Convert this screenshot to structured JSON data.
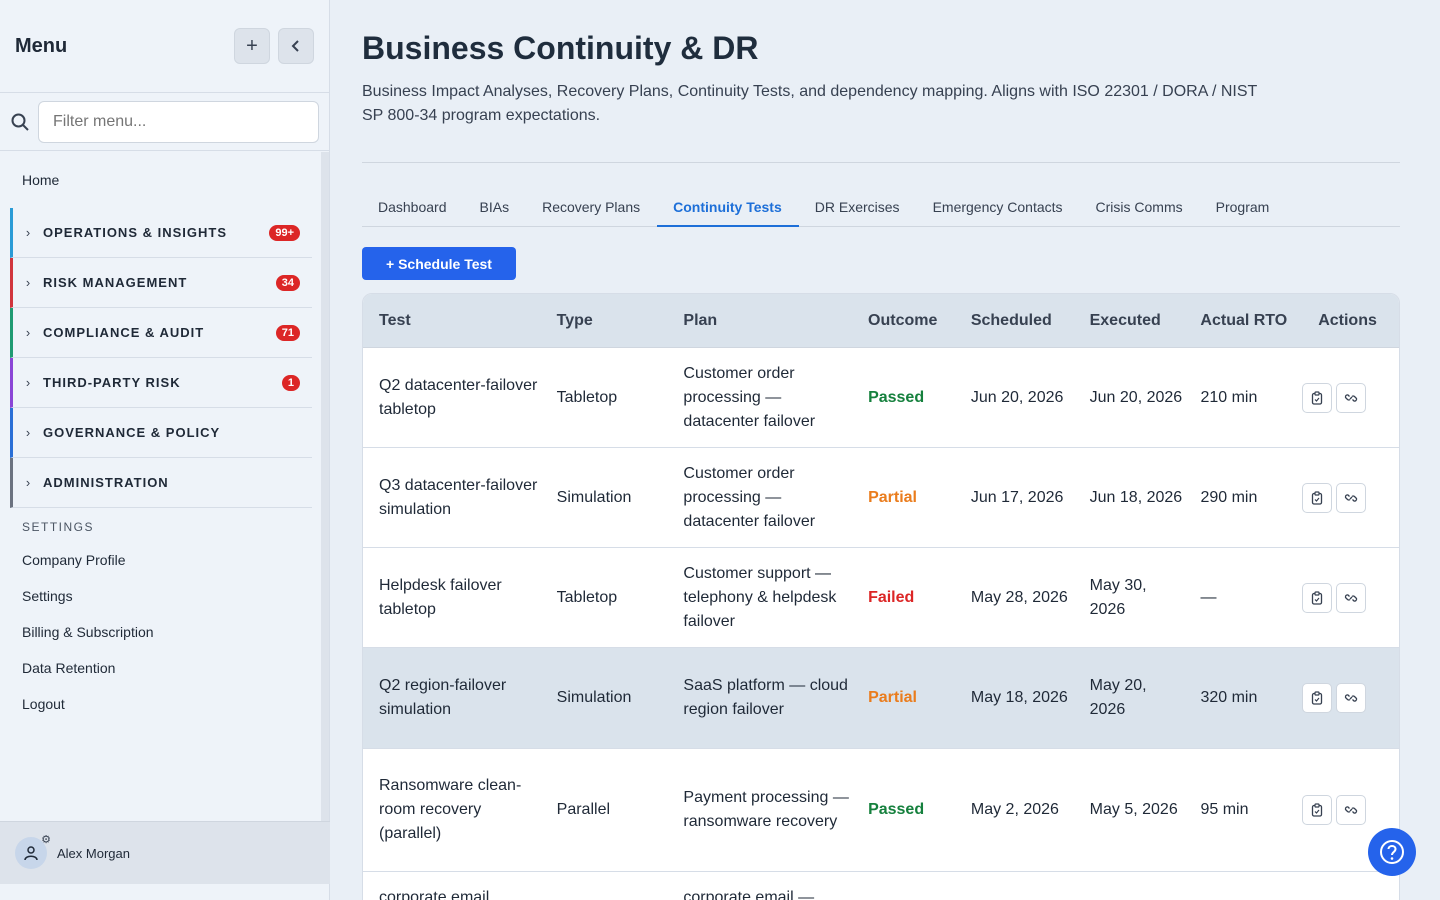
{
  "sidebar": {
    "title": "Menu",
    "search_placeholder": "Filter menu...",
    "home": "Home",
    "groups": [
      {
        "label": "OPERATIONS & INSIGHTS",
        "badge": "99+",
        "color": "#2a9bd6"
      },
      {
        "label": "RISK MANAGEMENT",
        "badge": "34",
        "color": "#d0353d"
      },
      {
        "label": "COMPLIANCE & AUDIT",
        "badge": "71",
        "color": "#1f9a72"
      },
      {
        "label": "THIRD-PARTY RISK",
        "badge": "1",
        "color": "#8a45d6"
      },
      {
        "label": "GOVERNANCE & POLICY",
        "badge": "",
        "color": "#2a6fd6"
      },
      {
        "label": "ADMINISTRATION",
        "badge": "",
        "color": "#6b7280"
      }
    ],
    "settings_heading": "SETTINGS",
    "links": [
      "Company Profile",
      "Settings",
      "Billing & Subscription",
      "Data Retention",
      "Logout"
    ],
    "user": "Alex Morgan"
  },
  "page": {
    "title": "Business Continuity & DR",
    "description": "Business Impact Analyses, Recovery Plans, Continuity Tests, and dependency mapping. Aligns with ISO 22301 / DORA / NIST SP 800-34 program expectations.",
    "tabs": [
      "Dashboard",
      "BIAs",
      "Recovery Plans",
      "Continuity Tests",
      "DR Exercises",
      "Emergency Contacts",
      "Crisis Comms",
      "Program"
    ],
    "active_tab": "Continuity Tests",
    "primary_action": "+ Schedule Test"
  },
  "table": {
    "headers": [
      "Test",
      "Type",
      "Plan",
      "Outcome",
      "Scheduled",
      "Executed",
      "Actual RTO",
      "Actions"
    ],
    "rows": [
      {
        "test": "Q2 datacenter-failover tabletop",
        "type": "Tabletop",
        "plan": "Customer order processing — datacenter failover",
        "outcome": "Passed",
        "scheduled": "Jun 20, 2026",
        "executed": "Jun 20, 2026",
        "rto": "210 min"
      },
      {
        "test": "Q3 datacenter-failover simulation",
        "type": "Simulation",
        "plan": "Customer order processing — datacenter failover",
        "outcome": "Partial",
        "scheduled": "Jun 17, 2026",
        "executed": "Jun 18, 2026",
        "rto": "290 min"
      },
      {
        "test": "Helpdesk failover tabletop",
        "type": "Tabletop",
        "plan": "Customer support — telephony & helpdesk failover",
        "outcome": "Failed",
        "scheduled": "May 28, 2026",
        "executed": "May 30, 2026",
        "rto": "—"
      },
      {
        "test": "Q2 region-failover simulation",
        "type": "Simulation",
        "plan": "SaaS platform — cloud region failover",
        "outcome": "Partial",
        "scheduled": "May 18, 2026",
        "executed": "May 20, 2026",
        "rto": "320 min"
      },
      {
        "test": "Ransomware clean-room recovery (parallel)",
        "type": "Parallel",
        "plan": "Payment processing — ransomware recovery",
        "outcome": "Passed",
        "scheduled": "May 2, 2026",
        "executed": "May 5, 2026",
        "rto": "95 min"
      },
      {
        "test": "corporate email",
        "type": "",
        "plan": "corporate email —",
        "outcome": "",
        "scheduled": "",
        "executed": "",
        "rto": ""
      }
    ]
  }
}
